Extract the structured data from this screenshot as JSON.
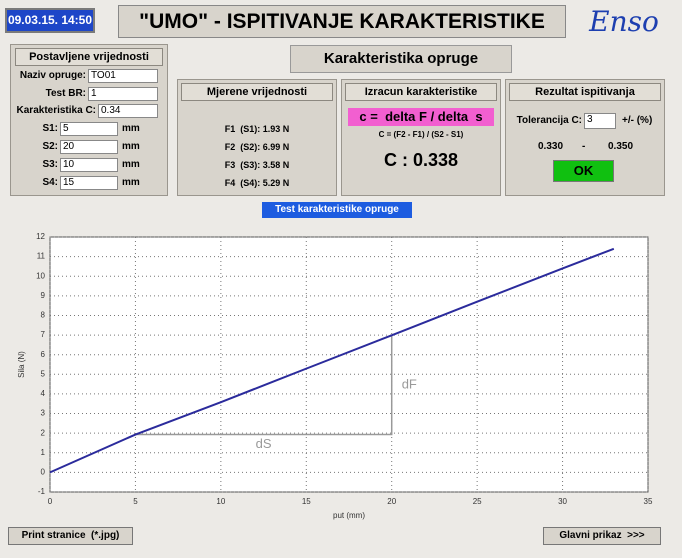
{
  "header": {
    "datetime": "09.03.15. 14:50",
    "title": "\"UMO\" - ISPITIVANJE KARAKTERISTIKE",
    "logo": "Enso"
  },
  "page_title": "Karakteristika opruge",
  "settings": {
    "title": "Postavljene vrijednosti",
    "fields": [
      {
        "label": "Naziv opruge:",
        "value": "TO01"
      },
      {
        "label": "Test BR:",
        "value": "1"
      },
      {
        "label": "Karakteristika C:",
        "value": "0.34"
      }
    ],
    "distances": [
      {
        "label": "S1:",
        "value": "5",
        "unit": "mm"
      },
      {
        "label": "S2:",
        "value": "20",
        "unit": "mm"
      },
      {
        "label": "S3:",
        "value": "10",
        "unit": "mm"
      },
      {
        "label": "S4:",
        "value": "15",
        "unit": "mm"
      }
    ]
  },
  "measured": {
    "title": "Mjerene vrijednosti",
    "rows": [
      "F1  (S1): 1.93 N",
      "F2  (S2): 6.99 N",
      "F3  (S3): 3.58 N",
      "F4  (S4): 5.29 N"
    ]
  },
  "calculation": {
    "title": "Izracun karakteristike",
    "formula": "c =  delta F / delta  s",
    "formula_detail": "C = (F2 - F1) / (S2 - S1)",
    "result": "C : 0.338"
  },
  "result": {
    "title": "Rezultat ispitivanja",
    "tolerance_label": "Tolerancija C:",
    "tolerance": "3",
    "tolerance_unit": "+/- (%)",
    "min": "0.330",
    "dash": "-",
    "max": "0.350",
    "status": "OK"
  },
  "chart_label": "Test karakteristike opruge",
  "chart": {
    "type": "line",
    "x_label": "put (mm)",
    "y_label": "Sila (N)",
    "x": [
      0,
      5,
      10,
      15,
      20,
      25,
      30,
      33
    ],
    "series": [
      {
        "color": "#2b2b9c",
        "values": [
          0,
          1.93,
          3.58,
          5.29,
          6.99,
          8.7,
          10.4,
          11.4
        ]
      }
    ],
    "xlim": [
      0,
      35
    ],
    "ylim": [
      -1,
      12
    ],
    "xticks": [
      0,
      5,
      10,
      15,
      20,
      25,
      30,
      35
    ],
    "yticks": [
      -1,
      0,
      1,
      2,
      3,
      4,
      5,
      6,
      7,
      8,
      9,
      10,
      11,
      12
    ],
    "grid": true,
    "annotations": [
      "dS",
      "dF"
    ]
  },
  "buttons": {
    "print": "Print stranice  (*.jpg)",
    "main": "Glavni prikaz  >>>"
  }
}
